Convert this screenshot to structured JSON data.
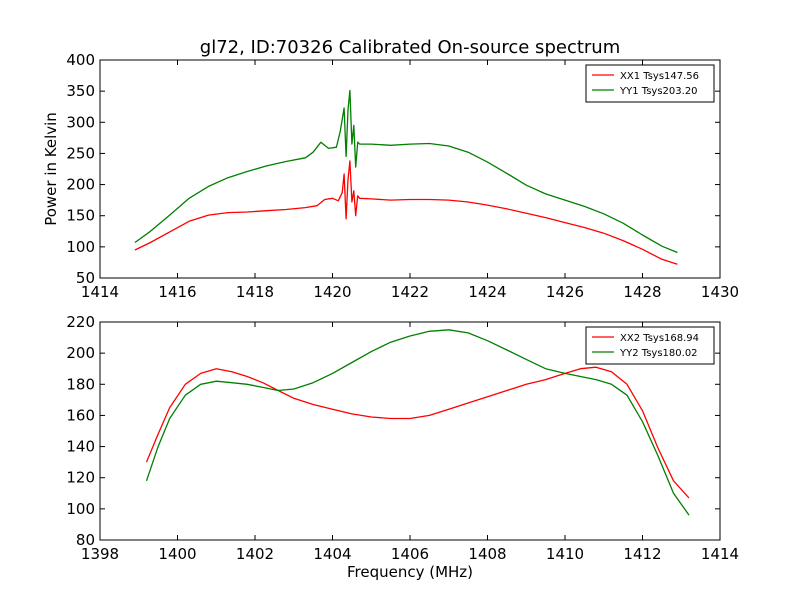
{
  "figure": {
    "title": "gl72, ID:70326 Calibrated On-source spectrum"
  },
  "chart_data": [
    {
      "type": "line",
      "title": "gl72, ID:70326 Calibrated On-source spectrum",
      "xlabel": "",
      "ylabel": "Power in Kelvin",
      "xlim": [
        1414,
        1430
      ],
      "ylim": [
        50,
        400
      ],
      "xticks": [
        "1414",
        "1416",
        "1418",
        "1420",
        "1422",
        "1424",
        "1426",
        "1428",
        "1430"
      ],
      "yticks": [
        "50",
        "100",
        "150",
        "200",
        "250",
        "300",
        "350",
        "400"
      ],
      "legend_position": "top-right",
      "grid": false,
      "series": [
        {
          "name": "XX1 Tsys147.56",
          "color": "#ff0000",
          "x": [
            1414.9,
            1415.3,
            1415.8,
            1416.3,
            1416.8,
            1417.3,
            1417.8,
            1418.3,
            1418.8,
            1419.3,
            1419.6,
            1419.8,
            1420.0,
            1420.15,
            1420.25,
            1420.3,
            1420.35,
            1420.4,
            1420.45,
            1420.5,
            1420.55,
            1420.6,
            1420.65,
            1420.7,
            1421.0,
            1421.5,
            1422.0,
            1422.5,
            1423.0,
            1423.5,
            1424.0,
            1424.5,
            1425.0,
            1425.5,
            1426.0,
            1426.5,
            1427.0,
            1427.5,
            1428.0,
            1428.5,
            1428.9
          ],
          "y": [
            95,
            107,
            124,
            141,
            151,
            155,
            156,
            158,
            160,
            163,
            166,
            176,
            178,
            174,
            187,
            217,
            145,
            208,
            238,
            172,
            190,
            150,
            182,
            178,
            177,
            175,
            176,
            176,
            175,
            172,
            167,
            161,
            154,
            147,
            139,
            131,
            122,
            110,
            96,
            80,
            72
          ]
        },
        {
          "name": "YY1 Tsys203.20",
          "color": "#008000",
          "x": [
            1414.9,
            1415.3,
            1415.8,
            1416.3,
            1416.8,
            1417.3,
            1417.8,
            1418.3,
            1418.8,
            1419.3,
            1419.5,
            1419.7,
            1419.9,
            1420.1,
            1420.2,
            1420.3,
            1420.35,
            1420.4,
            1420.45,
            1420.5,
            1420.55,
            1420.6,
            1420.65,
            1420.7,
            1421.0,
            1421.5,
            1422.0,
            1422.5,
            1423.0,
            1423.5,
            1424.0,
            1424.5,
            1425.0,
            1425.5,
            1426.0,
            1426.5,
            1427.0,
            1427.5,
            1428.0,
            1428.5,
            1428.9
          ],
          "y": [
            107,
            125,
            151,
            178,
            197,
            211,
            221,
            230,
            237,
            243,
            252,
            268,
            258,
            260,
            286,
            323,
            245,
            320,
            351,
            265,
            295,
            228,
            268,
            265,
            265,
            263,
            265,
            266,
            262,
            252,
            236,
            218,
            199,
            185,
            175,
            165,
            153,
            138,
            119,
            101,
            91
          ]
        }
      ]
    },
    {
      "type": "line",
      "title": "",
      "xlabel": "Frequency (MHz)",
      "ylabel": "",
      "xlim": [
        1398,
        1414
      ],
      "ylim": [
        80,
        220
      ],
      "xticks": [
        "1398",
        "1400",
        "1402",
        "1404",
        "1406",
        "1408",
        "1410",
        "1412",
        "1414"
      ],
      "yticks": [
        "80",
        "100",
        "120",
        "140",
        "160",
        "180",
        "200",
        "220"
      ],
      "legend_position": "top-right",
      "grid": false,
      "series": [
        {
          "name": "XX2 Tsys168.94",
          "color": "#ff0000",
          "x": [
            1399.2,
            1399.5,
            1399.8,
            1400.2,
            1400.6,
            1401.0,
            1401.4,
            1401.8,
            1402.2,
            1402.6,
            1403.0,
            1403.5,
            1404.0,
            1404.5,
            1405.0,
            1405.5,
            1406.0,
            1406.5,
            1407.0,
            1407.5,
            1408.0,
            1408.5,
            1409.0,
            1409.5,
            1410.0,
            1410.4,
            1410.8,
            1411.2,
            1411.6,
            1412.0,
            1412.4,
            1412.8,
            1413.2
          ],
          "y": [
            130,
            148,
            165,
            180,
            187,
            190,
            188,
            185,
            181,
            176,
            171,
            167,
            164,
            161,
            159,
            158,
            158,
            160,
            164,
            168,
            172,
            176,
            180,
            183,
            187,
            190,
            191,
            188,
            180,
            163,
            139,
            118,
            107
          ]
        },
        {
          "name": "YY2 Tsys180.02",
          "color": "#008000",
          "x": [
            1399.2,
            1399.5,
            1399.8,
            1400.2,
            1400.6,
            1401.0,
            1401.4,
            1401.8,
            1402.2,
            1402.6,
            1403.0,
            1403.5,
            1404.0,
            1404.5,
            1405.0,
            1405.5,
            1406.0,
            1406.5,
            1407.0,
            1407.5,
            1408.0,
            1408.5,
            1409.0,
            1409.5,
            1410.0,
            1410.4,
            1410.8,
            1411.2,
            1411.6,
            1412.0,
            1412.4,
            1412.8,
            1413.2
          ],
          "y": [
            118,
            140,
            158,
            173,
            180,
            182,
            181,
            180,
            178,
            176,
            177,
            181,
            187,
            194,
            201,
            207,
            211,
            214,
            215,
            213,
            208,
            202,
            196,
            190,
            187,
            185,
            183,
            180,
            173,
            156,
            134,
            110,
            96
          ]
        }
      ]
    }
  ]
}
